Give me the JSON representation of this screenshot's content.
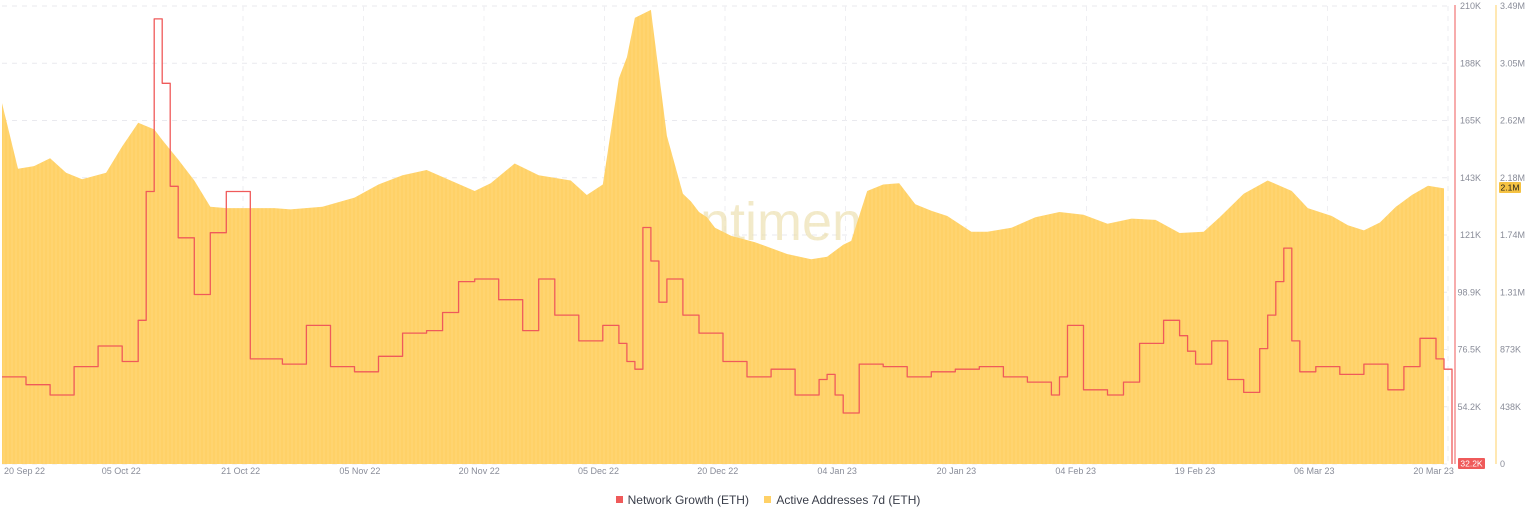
{
  "watermark": "santiment",
  "chart_data": {
    "type": "line+area",
    "x_labels": [
      "20 Sep 22",
      "05 Oct 22",
      "21 Oct 22",
      "05 Nov 22",
      "20 Nov 22",
      "05 Dec 22",
      "20 Dec 22",
      "04 Jan 23",
      "20 Jan 23",
      "04 Feb 23",
      "19 Feb 23",
      "06 Mar 23",
      "20 Mar 23"
    ],
    "y_left_ticks": [
      "210K",
      "188K",
      "165K",
      "143K",
      "121K",
      "98.9K",
      "76.5K",
      "54.2K",
      "32.2K"
    ],
    "y_right_ticks": [
      "3.49M",
      "3.05M",
      "2.62M",
      "2.18M",
      "1.74M",
      "1.31M",
      "873K",
      "438K",
      "0"
    ],
    "left_axis": {
      "min": 32200,
      "max": 210000
    },
    "right_axis": {
      "min": 0,
      "max": 3490000
    },
    "current_values": {
      "network_growth": "32.2K",
      "active_addresses": "2.1M"
    },
    "series": [
      {
        "name": "Network Growth (ETH)",
        "color": "#ef5a5a",
        "axis": "left",
        "x": [
          "2022-09-20",
          "2022-09-23",
          "2022-09-26",
          "2022-09-29",
          "2022-10-02",
          "2022-10-05",
          "2022-10-07",
          "2022-10-08",
          "2022-10-09",
          "2022-10-10",
          "2022-10-11",
          "2022-10-12",
          "2022-10-14",
          "2022-10-16",
          "2022-10-18",
          "2022-10-21",
          "2022-10-25",
          "2022-10-28",
          "2022-10-31",
          "2022-11-03",
          "2022-11-06",
          "2022-11-09",
          "2022-11-12",
          "2022-11-14",
          "2022-11-16",
          "2022-11-18",
          "2022-11-21",
          "2022-11-24",
          "2022-11-26",
          "2022-11-28",
          "2022-12-01",
          "2022-12-04",
          "2022-12-06",
          "2022-12-07",
          "2022-12-08",
          "2022-12-09",
          "2022-12-10",
          "2022-12-11",
          "2022-12-12",
          "2022-12-14",
          "2022-12-16",
          "2022-12-19",
          "2022-12-22",
          "2022-12-25",
          "2022-12-28",
          "2022-12-31",
          "2023-01-01",
          "2023-01-02",
          "2023-01-03",
          "2023-01-05",
          "2023-01-08",
          "2023-01-11",
          "2023-01-14",
          "2023-01-17",
          "2023-01-20",
          "2023-01-23",
          "2023-01-26",
          "2023-01-29",
          "2023-01-30",
          "2023-01-31",
          "2023-02-02",
          "2023-02-05",
          "2023-02-07",
          "2023-02-09",
          "2023-02-12",
          "2023-02-14",
          "2023-02-15",
          "2023-02-16",
          "2023-02-18",
          "2023-02-20",
          "2023-02-22",
          "2023-02-24",
          "2023-02-25",
          "2023-02-26",
          "2023-02-27",
          "2023-02-28",
          "2023-03-01",
          "2023-03-03",
          "2023-03-06",
          "2023-03-09",
          "2023-03-12",
          "2023-03-14",
          "2023-03-16",
          "2023-03-18",
          "2023-03-19",
          "2023-03-20"
        ],
        "values": [
          66000,
          63000,
          59000,
          70000,
          78000,
          72000,
          88000,
          138000,
          205000,
          180000,
          140000,
          120000,
          98000,
          122000,
          138000,
          73000,
          71000,
          86000,
          70000,
          68000,
          74000,
          83000,
          84000,
          91000,
          103000,
          104000,
          96000,
          84000,
          104000,
          90000,
          80000,
          86000,
          79000,
          72000,
          69000,
          124000,
          111000,
          95000,
          104000,
          90000,
          83000,
          72000,
          66000,
          69000,
          59000,
          65000,
          67000,
          59000,
          52000,
          71000,
          70000,
          66000,
          68000,
          69000,
          70000,
          66000,
          64000,
          59000,
          66000,
          86000,
          61000,
          59000,
          64000,
          79000,
          88000,
          82000,
          76000,
          71000,
          80000,
          65000,
          60000,
          77000,
          90000,
          103000,
          116000,
          80000,
          68000,
          70000,
          67000,
          71000,
          61000,
          70000,
          81000,
          73000,
          69000,
          32200
        ]
      },
      {
        "name": "Active Addresses 7d (ETH)",
        "color": "#ffd167",
        "axis": "right",
        "x": [
          "2022-09-20",
          "2022-09-22",
          "2022-09-24",
          "2022-09-26",
          "2022-09-28",
          "2022-09-30",
          "2022-10-03",
          "2022-10-05",
          "2022-10-07",
          "2022-10-09",
          "2022-10-10",
          "2022-10-12",
          "2022-10-14",
          "2022-10-16",
          "2022-10-18",
          "2022-10-21",
          "2022-10-24",
          "2022-10-26",
          "2022-10-30",
          "2022-11-03",
          "2022-11-06",
          "2022-11-09",
          "2022-11-12",
          "2022-11-15",
          "2022-11-18",
          "2022-11-20",
          "2022-11-23",
          "2022-11-26",
          "2022-11-30",
          "2022-12-02",
          "2022-12-04",
          "2022-12-06",
          "2022-12-07",
          "2022-12-08",
          "2022-12-10",
          "2022-12-12",
          "2022-12-13",
          "2022-12-14",
          "2022-12-15",
          "2022-12-16",
          "2022-12-17",
          "2022-12-18",
          "2022-12-20",
          "2022-12-23",
          "2022-12-27",
          "2022-12-30",
          "2023-01-01",
          "2023-01-03",
          "2023-01-04",
          "2023-01-06",
          "2023-01-08",
          "2023-01-10",
          "2023-01-12",
          "2023-01-14",
          "2023-01-16",
          "2023-01-19",
          "2023-01-21",
          "2023-01-24",
          "2023-01-27",
          "2023-01-30",
          "2023-02-02",
          "2023-02-05",
          "2023-02-08",
          "2023-02-11",
          "2023-02-14",
          "2023-02-17",
          "2023-02-19",
          "2023-02-22",
          "2023-02-25",
          "2023-02-28",
          "2023-03-02",
          "2023-03-05",
          "2023-03-07",
          "2023-03-09",
          "2023-03-11",
          "2023-03-13",
          "2023-03-15",
          "2023-03-17",
          "2023-03-19"
        ],
        "values": [
          2750000,
          2250000,
          2270000,
          2330000,
          2220000,
          2170000,
          2220000,
          2420000,
          2600000,
          2550000,
          2470000,
          2320000,
          2160000,
          1960000,
          1950000,
          1950000,
          1950000,
          1940000,
          1960000,
          2030000,
          2130000,
          2200000,
          2240000,
          2160000,
          2080000,
          2140000,
          2290000,
          2200000,
          2160000,
          2050000,
          2130000,
          2940000,
          3100000,
          3400000,
          3460000,
          2500000,
          2280000,
          2060000,
          2000000,
          1920000,
          1880000,
          1800000,
          1740000,
          1690000,
          1600000,
          1560000,
          1580000,
          1670000,
          1700000,
          2080000,
          2130000,
          2140000,
          1980000,
          1930000,
          1890000,
          1770000,
          1770000,
          1800000,
          1880000,
          1920000,
          1900000,
          1830000,
          1870000,
          1860000,
          1760000,
          1770000,
          1880000,
          2060000,
          2160000,
          2080000,
          1950000,
          1890000,
          1820000,
          1780000,
          1840000,
          1960000,
          2050000,
          2120000,
          2100000
        ]
      }
    ]
  }
}
